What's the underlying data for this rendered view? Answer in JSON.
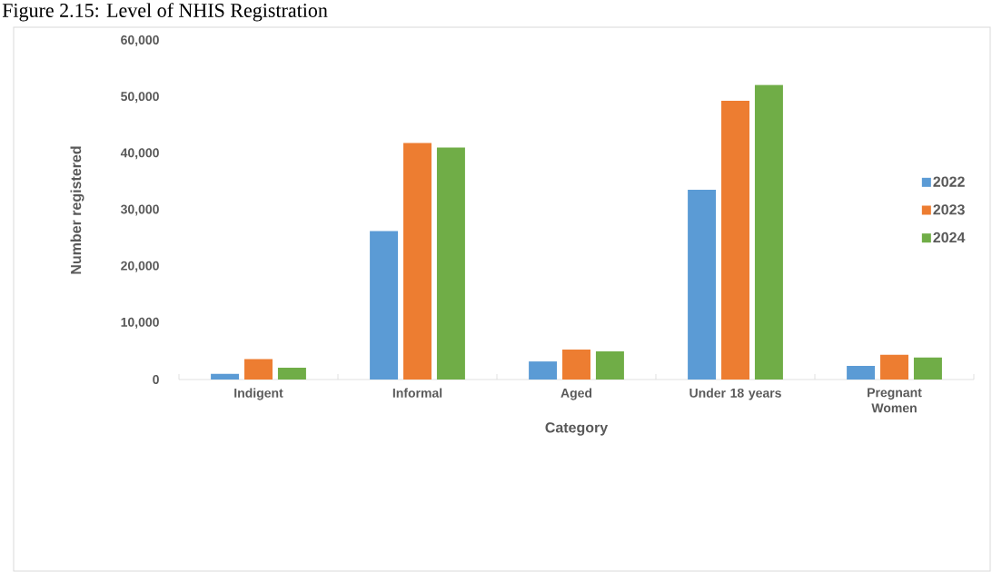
{
  "chart_data": {
    "type": "bar",
    "title": "Figure 2.15: Level of NHIS Registration",
    "xlabel": "Category",
    "ylabel": "Number registered",
    "categories": [
      "Indigent",
      "Informal",
      "Aged",
      "Under 18 years",
      "Pregnant Women"
    ],
    "series": [
      {
        "name": "2022",
        "color": "#5b9bd5",
        "values": [
          1000,
          26300,
          3200,
          33600,
          2400
        ]
      },
      {
        "name": "2023",
        "color": "#ed7d31",
        "values": [
          3600,
          41900,
          5300,
          49400,
          4400
        ]
      },
      {
        "name": "2024",
        "color": "#70ad47",
        "values": [
          2100,
          41100,
          5000,
          52200,
          3900
        ]
      }
    ],
    "ylim": [
      0,
      60000
    ],
    "yticks": [
      {
        "value": 0,
        "label": "0"
      },
      {
        "value": 10000,
        "label": "10,000"
      },
      {
        "value": 20000,
        "label": "20,000"
      },
      {
        "value": 30000,
        "label": "30,000"
      },
      {
        "value": 40000,
        "label": "40,000"
      },
      {
        "value": 50000,
        "label": "50,000"
      },
      {
        "value": 60000,
        "label": "60,000"
      }
    ],
    "grid": false,
    "legend": "right"
  }
}
